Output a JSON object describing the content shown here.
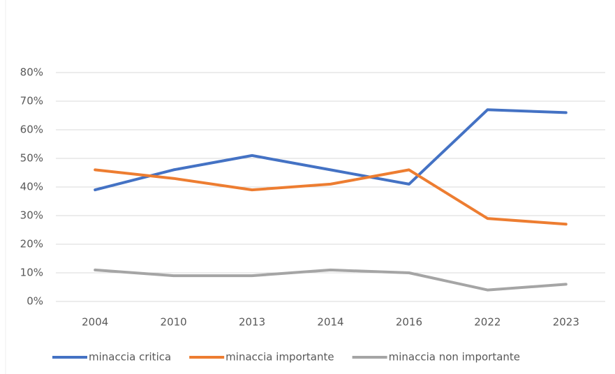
{
  "chart_data": {
    "type": "line",
    "categories": [
      "2004",
      "2010",
      "2013",
      "2014",
      "2016",
      "2022",
      "2023"
    ],
    "series": [
      {
        "name": "minaccia critica",
        "color": "#4472c4",
        "values": [
          39,
          46,
          51,
          46,
          41,
          67,
          66
        ]
      },
      {
        "name": "minaccia importante",
        "color": "#ed7d31",
        "values": [
          46,
          43,
          39,
          41,
          46,
          29,
          27
        ]
      },
      {
        "name": "minaccia non importante",
        "color": "#a5a5a5",
        "values": [
          11,
          9,
          9,
          11,
          10,
          4,
          6
        ]
      }
    ],
    "ylim": [
      0,
      80
    ],
    "yticks": [
      {
        "value": 0,
        "label": "0%"
      },
      {
        "value": 10,
        "label": "10%"
      },
      {
        "value": 20,
        "label": "20%"
      },
      {
        "value": 30,
        "label": "30%"
      },
      {
        "value": 40,
        "label": "40%"
      },
      {
        "value": 50,
        "label": "50%"
      },
      {
        "value": 60,
        "label": "60%"
      },
      {
        "value": 70,
        "label": "70%"
      },
      {
        "value": 80,
        "label": "80%"
      }
    ],
    "grid": true,
    "legend": "bottom"
  }
}
